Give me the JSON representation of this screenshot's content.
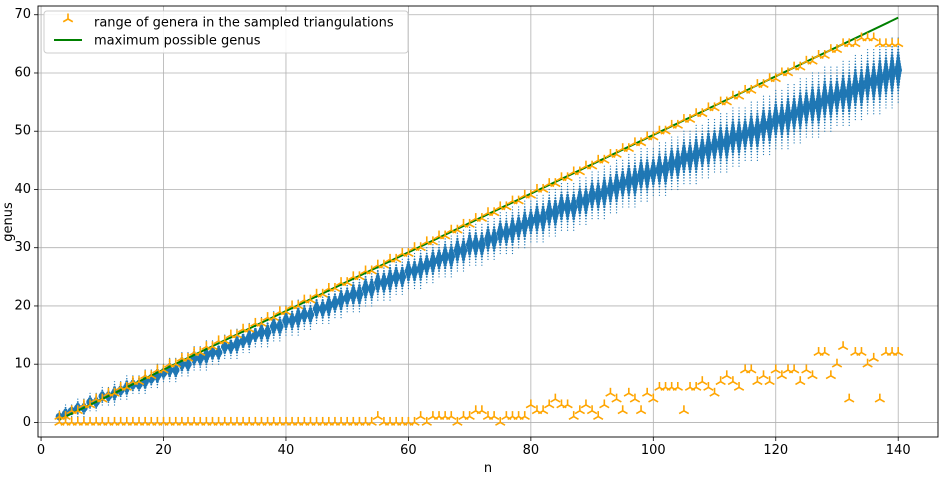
{
  "chart_data": {
    "type": "scatter",
    "title": "",
    "xlabel": "n",
    "ylabel": "genus",
    "xlim": [
      -0.5,
      146.5
    ],
    "ylim": [
      -2.5,
      71.5
    ],
    "xticks": [
      0,
      20,
      40,
      60,
      80,
      100,
      120,
      140
    ],
    "yticks": [
      0,
      10,
      20,
      30,
      40,
      50,
      60,
      70
    ],
    "grid": true,
    "legend_position": "top-left",
    "colors": {
      "samples": "#1f77b4",
      "range_markers": "#ffa500",
      "max_line": "#008000"
    },
    "series": [
      {
        "name": "range of genera in the sampled triangulations",
        "kind": "tri_down_markers",
        "max_genus": [
          [
            3,
            1
          ],
          [
            4,
            1
          ],
          [
            5,
            2
          ],
          [
            6,
            2
          ],
          [
            7,
            3
          ],
          [
            8,
            3
          ],
          [
            9,
            4
          ],
          [
            10,
            4
          ],
          [
            11,
            5
          ],
          [
            12,
            5
          ],
          [
            13,
            6
          ],
          [
            14,
            6
          ],
          [
            15,
            7
          ],
          [
            16,
            7
          ],
          [
            17,
            8
          ],
          [
            18,
            8
          ],
          [
            19,
            9
          ],
          [
            20,
            9
          ],
          [
            21,
            10
          ],
          [
            22,
            10
          ],
          [
            23,
            11
          ],
          [
            24,
            11
          ],
          [
            25,
            12
          ],
          [
            26,
            12
          ],
          [
            27,
            13
          ],
          [
            28,
            13
          ],
          [
            29,
            14
          ],
          [
            30,
            14
          ],
          [
            31,
            15
          ],
          [
            32,
            15
          ],
          [
            33,
            16
          ],
          [
            34,
            16
          ],
          [
            35,
            17
          ],
          [
            36,
            17
          ],
          [
            37,
            18
          ],
          [
            38,
            18
          ],
          [
            39,
            19
          ],
          [
            40,
            19
          ],
          [
            41,
            20
          ],
          [
            42,
            20
          ],
          [
            43,
            21
          ],
          [
            44,
            21
          ],
          [
            45,
            22
          ],
          [
            46,
            22
          ],
          [
            47,
            23
          ],
          [
            48,
            23
          ],
          [
            49,
            24
          ],
          [
            50,
            24
          ],
          [
            51,
            25
          ],
          [
            52,
            25
          ],
          [
            53,
            26
          ],
          [
            54,
            26
          ],
          [
            55,
            27
          ],
          [
            56,
            27
          ],
          [
            57,
            28
          ],
          [
            58,
            28
          ],
          [
            59,
            29
          ],
          [
            60,
            29
          ],
          [
            61,
            30
          ],
          [
            62,
            30
          ],
          [
            63,
            31
          ],
          [
            64,
            31
          ],
          [
            65,
            32
          ],
          [
            66,
            32
          ],
          [
            67,
            33
          ],
          [
            68,
            33
          ],
          [
            69,
            34
          ],
          [
            70,
            34
          ],
          [
            71,
            35
          ],
          [
            72,
            35
          ],
          [
            73,
            36
          ],
          [
            74,
            36
          ],
          [
            75,
            37
          ],
          [
            76,
            37
          ],
          [
            77,
            38
          ],
          [
            78,
            38
          ],
          [
            79,
            39
          ],
          [
            80,
            39
          ],
          [
            81,
            40
          ],
          [
            82,
            40
          ],
          [
            83,
            41
          ],
          [
            84,
            41
          ],
          [
            85,
            42
          ],
          [
            86,
            42
          ],
          [
            87,
            43
          ],
          [
            88,
            43
          ],
          [
            89,
            44
          ],
          [
            90,
            44
          ],
          [
            91,
            45
          ],
          [
            92,
            45
          ],
          [
            93,
            46
          ],
          [
            94,
            46
          ],
          [
            95,
            47
          ],
          [
            96,
            47
          ],
          [
            97,
            48
          ],
          [
            98,
            48
          ],
          [
            99,
            49
          ],
          [
            100,
            49
          ],
          [
            101,
            50
          ],
          [
            102,
            50
          ],
          [
            103,
            51
          ],
          [
            104,
            51
          ],
          [
            105,
            52
          ],
          [
            106,
            52
          ],
          [
            107,
            53
          ],
          [
            108,
            53
          ],
          [
            109,
            54
          ],
          [
            110,
            54
          ],
          [
            111,
            55
          ],
          [
            112,
            55
          ],
          [
            113,
            56
          ],
          [
            114,
            56
          ],
          [
            115,
            57
          ],
          [
            116,
            57
          ],
          [
            117,
            58
          ],
          [
            118,
            58
          ],
          [
            119,
            59
          ],
          [
            120,
            59
          ],
          [
            121,
            60
          ],
          [
            122,
            60
          ],
          [
            123,
            61
          ],
          [
            124,
            61
          ],
          [
            125,
            62
          ],
          [
            126,
            62
          ],
          [
            127,
            63
          ],
          [
            128,
            63
          ],
          [
            129,
            64
          ],
          [
            130,
            64
          ],
          [
            131,
            65
          ],
          [
            132,
            65
          ],
          [
            133,
            65
          ],
          [
            134,
            66
          ],
          [
            135,
            66
          ],
          [
            136,
            66
          ],
          [
            137,
            65
          ],
          [
            138,
            65
          ],
          [
            139,
            65
          ],
          [
            140,
            65
          ]
        ],
        "min_genus": [
          [
            3,
            0
          ],
          [
            4,
            0
          ],
          [
            5,
            0
          ],
          [
            6,
            0
          ],
          [
            7,
            0
          ],
          [
            8,
            0
          ],
          [
            9,
            0
          ],
          [
            10,
            0
          ],
          [
            11,
            0
          ],
          [
            12,
            0
          ],
          [
            13,
            0
          ],
          [
            14,
            0
          ],
          [
            15,
            0
          ],
          [
            16,
            0
          ],
          [
            17,
            0
          ],
          [
            18,
            0
          ],
          [
            19,
            0
          ],
          [
            20,
            0
          ],
          [
            21,
            0
          ],
          [
            22,
            0
          ],
          [
            23,
            0
          ],
          [
            24,
            0
          ],
          [
            25,
            0
          ],
          [
            26,
            0
          ],
          [
            27,
            0
          ],
          [
            28,
            0
          ],
          [
            29,
            0
          ],
          [
            30,
            0
          ],
          [
            31,
            0
          ],
          [
            32,
            0
          ],
          [
            33,
            0
          ],
          [
            34,
            0
          ],
          [
            35,
            0
          ],
          [
            36,
            0
          ],
          [
            37,
            0
          ],
          [
            38,
            0
          ],
          [
            39,
            0
          ],
          [
            40,
            0
          ],
          [
            41,
            0
          ],
          [
            42,
            0
          ],
          [
            43,
            0
          ],
          [
            44,
            0
          ],
          [
            45,
            0
          ],
          [
            46,
            0
          ],
          [
            47,
            0
          ],
          [
            48,
            0
          ],
          [
            49,
            0
          ],
          [
            50,
            0
          ],
          [
            51,
            0
          ],
          [
            52,
            0
          ],
          [
            53,
            0
          ],
          [
            54,
            0
          ],
          [
            55,
            1
          ],
          [
            56,
            0
          ],
          [
            57,
            0
          ],
          [
            58,
            0
          ],
          [
            59,
            0
          ],
          [
            60,
            0
          ],
          [
            61,
            0
          ],
          [
            62,
            1
          ],
          [
            63,
            0
          ],
          [
            64,
            1
          ],
          [
            65,
            1
          ],
          [
            66,
            1
          ],
          [
            67,
            1
          ],
          [
            68,
            0
          ],
          [
            69,
            1
          ],
          [
            70,
            1
          ],
          [
            71,
            2
          ],
          [
            72,
            2
          ],
          [
            73,
            1
          ],
          [
            74,
            1
          ],
          [
            75,
            0
          ],
          [
            76,
            1
          ],
          [
            77,
            1
          ],
          [
            78,
            1
          ],
          [
            79,
            1
          ],
          [
            80,
            3
          ],
          [
            81,
            2
          ],
          [
            82,
            2
          ],
          [
            83,
            3
          ],
          [
            84,
            4
          ],
          [
            85,
            3
          ],
          [
            86,
            3
          ],
          [
            87,
            1
          ],
          [
            88,
            2
          ],
          [
            89,
            3
          ],
          [
            90,
            2
          ],
          [
            91,
            1
          ],
          [
            92,
            3
          ],
          [
            93,
            5
          ],
          [
            94,
            4
          ],
          [
            95,
            2
          ],
          [
            96,
            5
          ],
          [
            97,
            4
          ],
          [
            98,
            2
          ],
          [
            99,
            5
          ],
          [
            100,
            4
          ],
          [
            101,
            6
          ],
          [
            102,
            6
          ],
          [
            103,
            6
          ],
          [
            104,
            6
          ],
          [
            105,
            2
          ],
          [
            106,
            6
          ],
          [
            107,
            6
          ],
          [
            108,
            7
          ],
          [
            109,
            6
          ],
          [
            110,
            5
          ],
          [
            111,
            7
          ],
          [
            112,
            8
          ],
          [
            113,
            7
          ],
          [
            114,
            6
          ],
          [
            115,
            9
          ],
          [
            116,
            9
          ],
          [
            117,
            7
          ],
          [
            118,
            8
          ],
          [
            119,
            7
          ],
          [
            120,
            9
          ],
          [
            121,
            8
          ],
          [
            122,
            9
          ],
          [
            123,
            9
          ],
          [
            124,
            7
          ],
          [
            125,
            9
          ],
          [
            126,
            8
          ],
          [
            127,
            12
          ],
          [
            128,
            12
          ],
          [
            129,
            8
          ],
          [
            130,
            10
          ],
          [
            131,
            13
          ],
          [
            132,
            4
          ],
          [
            133,
            12
          ],
          [
            134,
            12
          ],
          [
            135,
            10
          ],
          [
            136,
            11
          ],
          [
            137,
            4
          ],
          [
            138,
            12
          ],
          [
            139,
            12
          ],
          [
            140,
            12
          ]
        ]
      },
      {
        "name": "maximum possible genus",
        "kind": "line",
        "x": [
          3,
          140
        ],
        "y": [
          0.5,
          69.5
        ]
      },
      {
        "name": "",
        "kind": "sample_cloud",
        "description_of_values": "for each n from 3 to 140, sampled genera spanning roughly 0.40n-1 to 0.46n+1, with density highest near the center",
        "x_range": [
          3,
          140
        ],
        "genus_band_low_slope": 0.4,
        "genus_band_high_slope": 0.465
      }
    ]
  }
}
